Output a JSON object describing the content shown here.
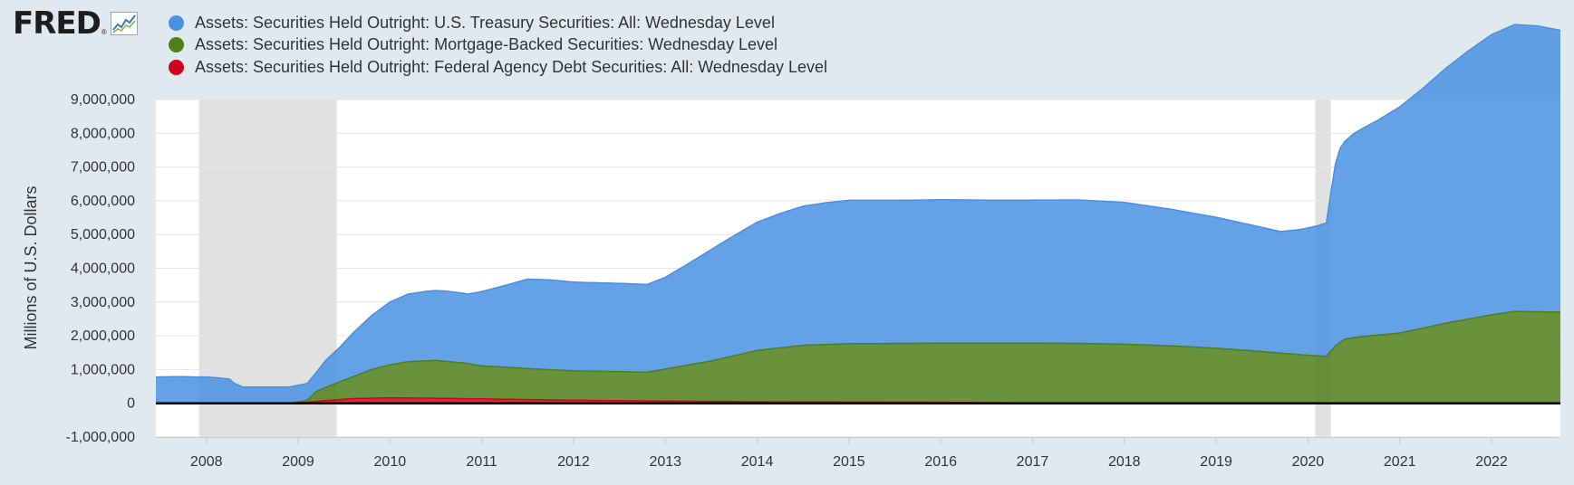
{
  "brand": {
    "name": "FRED",
    "mark": "®"
  },
  "colors": {
    "treasury": "#4a90e2",
    "mbs": "#4f7f1b",
    "agency": "#d0021b",
    "recession": "#e1e1e1",
    "plot_bg": "#ffffff",
    "page_bg": "#e1e9f0"
  },
  "chart_data": {
    "type": "area",
    "ylabel": "Millions of U.S. Dollars",
    "ylim": [
      -1000000,
      9000000
    ],
    "xlim": [
      2007.45,
      2022.75
    ],
    "y_ticks": [
      -1000000,
      0,
      1000000,
      2000000,
      3000000,
      4000000,
      5000000,
      6000000,
      7000000,
      8000000,
      9000000
    ],
    "y_tick_labels": [
      "-1,000,000",
      "0",
      "1,000,000",
      "2,000,000",
      "3,000,000",
      "4,000,000",
      "5,000,000",
      "6,000,000",
      "7,000,000",
      "8,000,000",
      "9,000,000"
    ],
    "x_ticks": [
      2008,
      2009,
      2010,
      2011,
      2012,
      2013,
      2014,
      2015,
      2016,
      2017,
      2018,
      2019,
      2020,
      2021,
      2022
    ],
    "x_tick_labels": [
      "2008",
      "2009",
      "2010",
      "2011",
      "2012",
      "2013",
      "2014",
      "2015",
      "2016",
      "2017",
      "2018",
      "2019",
      "2020",
      "2021",
      "2022"
    ],
    "stacked": true,
    "legend_position": "top-left",
    "recessions": [
      [
        2007.92,
        2009.42
      ],
      [
        2020.08,
        2020.25
      ]
    ],
    "series": [
      {
        "name": "Assets: Securities Held Outright: U.S. Treasury Securities: All: Wednesday Level",
        "color": "#4a90e2",
        "points": [
          [
            2007.45,
            780000
          ],
          [
            2007.7,
            790000
          ],
          [
            2007.9,
            780000
          ],
          [
            2008.0,
            780000
          ],
          [
            2008.1,
            760000
          ],
          [
            2008.25,
            720000
          ],
          [
            2008.3,
            600000
          ],
          [
            2008.4,
            480000
          ],
          [
            2008.6,
            480000
          ],
          [
            2008.9,
            480000
          ],
          [
            2009.1,
            500000
          ],
          [
            2009.2,
            570000
          ],
          [
            2009.3,
            800000
          ],
          [
            2009.45,
            1020000
          ],
          [
            2009.6,
            1300000
          ],
          [
            2009.8,
            1600000
          ],
          [
            2010.0,
            1860000
          ],
          [
            2010.2,
            2000000
          ],
          [
            2010.4,
            2060000
          ],
          [
            2010.6,
            2080000
          ],
          [
            2010.85,
            2060000
          ],
          [
            2011.0,
            2200000
          ],
          [
            2011.25,
            2420000
          ],
          [
            2011.5,
            2650000
          ],
          [
            2011.75,
            2660000
          ],
          [
            2012.0,
            2630000
          ],
          [
            2012.3,
            2620000
          ],
          [
            2012.6,
            2610000
          ],
          [
            2012.8,
            2600000
          ],
          [
            2013.0,
            2720000
          ],
          [
            2013.25,
            3000000
          ],
          [
            2013.5,
            3300000
          ],
          [
            2013.75,
            3560000
          ],
          [
            2014.0,
            3800000
          ],
          [
            2014.25,
            3980000
          ],
          [
            2014.5,
            4120000
          ],
          [
            2014.75,
            4200000
          ],
          [
            2015.0,
            4250000
          ],
          [
            2015.5,
            4240000
          ],
          [
            2016.0,
            4250000
          ],
          [
            2016.5,
            4240000
          ],
          [
            2017.0,
            4240000
          ],
          [
            2017.5,
            4250000
          ],
          [
            2018.0,
            4200000
          ],
          [
            2018.5,
            4050000
          ],
          [
            2019.0,
            3880000
          ],
          [
            2019.5,
            3680000
          ],
          [
            2019.7,
            3600000
          ],
          [
            2019.9,
            3700000
          ],
          [
            2020.1,
            3850000
          ],
          [
            2020.2,
            3950000
          ],
          [
            2020.25,
            4700000
          ],
          [
            2020.3,
            5400000
          ],
          [
            2020.35,
            5750000
          ],
          [
            2020.5,
            6050000
          ],
          [
            2020.75,
            6350000
          ],
          [
            2021.0,
            6700000
          ],
          [
            2021.25,
            7100000
          ],
          [
            2021.5,
            7550000
          ],
          [
            2021.75,
            7950000
          ],
          [
            2022.0,
            8300000
          ],
          [
            2022.25,
            8500000
          ],
          [
            2022.5,
            8470000
          ],
          [
            2022.75,
            8350000
          ]
        ]
      },
      {
        "name": "Assets: Securities Held Outright: Mortgage-Backed Securities: Wednesday Level",
        "color": "#4f7f1b",
        "points": [
          [
            2007.45,
            0
          ],
          [
            2008.9,
            0
          ],
          [
            2009.1,
            60000
          ],
          [
            2009.2,
            300000
          ],
          [
            2009.4,
            480000
          ],
          [
            2009.6,
            650000
          ],
          [
            2009.8,
            850000
          ],
          [
            2010.0,
            980000
          ],
          [
            2010.2,
            1080000
          ],
          [
            2010.5,
            1120000
          ],
          [
            2010.8,
            1060000
          ],
          [
            2011.0,
            980000
          ],
          [
            2011.5,
            920000
          ],
          [
            2012.0,
            870000
          ],
          [
            2012.5,
            860000
          ],
          [
            2012.8,
            850000
          ],
          [
            2013.0,
            950000
          ],
          [
            2013.5,
            1200000
          ],
          [
            2014.0,
            1520000
          ],
          [
            2014.5,
            1680000
          ],
          [
            2015.0,
            1730000
          ],
          [
            2015.5,
            1740000
          ],
          [
            2016.0,
            1750000
          ],
          [
            2016.5,
            1760000
          ],
          [
            2017.0,
            1770000
          ],
          [
            2017.5,
            1770000
          ],
          [
            2018.0,
            1750000
          ],
          [
            2018.5,
            1700000
          ],
          [
            2019.0,
            1630000
          ],
          [
            2019.5,
            1530000
          ],
          [
            2020.0,
            1420000
          ],
          [
            2020.2,
            1390000
          ],
          [
            2020.3,
            1700000
          ],
          [
            2020.4,
            1900000
          ],
          [
            2020.6,
            1980000
          ],
          [
            2021.0,
            2080000
          ],
          [
            2021.5,
            2370000
          ],
          [
            2022.0,
            2620000
          ],
          [
            2022.25,
            2720000
          ],
          [
            2022.75,
            2700000
          ]
        ]
      },
      {
        "name": "Assets: Securities Held Outright: Federal Agency Debt Securities: All: Wednesday Level",
        "color": "#d0021b",
        "points": [
          [
            2007.45,
            0
          ],
          [
            2008.9,
            0
          ],
          [
            2009.1,
            30000
          ],
          [
            2009.3,
            80000
          ],
          [
            2009.6,
            140000
          ],
          [
            2010.0,
            160000
          ],
          [
            2010.5,
            150000
          ],
          [
            2011.0,
            130000
          ],
          [
            2011.5,
            110000
          ],
          [
            2012.0,
            90000
          ],
          [
            2012.5,
            80000
          ],
          [
            2013.0,
            65000
          ],
          [
            2013.5,
            55000
          ],
          [
            2014.0,
            45000
          ],
          [
            2014.5,
            40000
          ],
          [
            2015.0,
            35000
          ],
          [
            2015.5,
            33000
          ],
          [
            2016.0,
            30000
          ],
          [
            2016.5,
            20000
          ],
          [
            2017.0,
            10000
          ],
          [
            2017.5,
            5000
          ],
          [
            2018.0,
            2400
          ],
          [
            2022.75,
            2300
          ]
        ]
      }
    ]
  }
}
